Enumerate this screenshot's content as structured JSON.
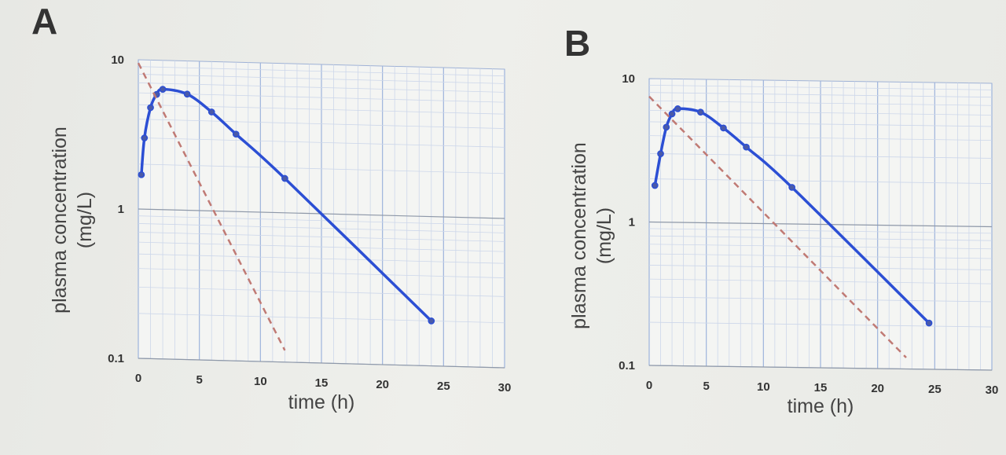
{
  "chart_data": [
    {
      "panel_label": "A",
      "type": "line",
      "xlabel": "time (h)",
      "ylabel_line1": "plasma concentration",
      "ylabel_line2": "(mg/L)",
      "xlim": [
        0,
        30
      ],
      "ylim": [
        0.1,
        10
      ],
      "yscale": "log",
      "xticks": [
        "0",
        "5",
        "10",
        "15",
        "20",
        "25",
        "30"
      ],
      "yticks": [
        "0.1",
        "1",
        "10"
      ],
      "grid": true,
      "series": [
        {
          "style": "solid-with-markers",
          "color": "#2c4fd4",
          "x": [
            0.25,
            0.5,
            1,
            1.5,
            2,
            4,
            6,
            8,
            12,
            24
          ],
          "y": [
            1.7,
            3.0,
            4.8,
            5.9,
            6.4,
            6.0,
            4.6,
            3.3,
            1.7,
            0.2
          ]
        },
        {
          "style": "dashed",
          "color": "#c07a74",
          "x": [
            0,
            12
          ],
          "y": [
            9.5,
            0.12
          ]
        }
      ]
    },
    {
      "panel_label": "B",
      "type": "line",
      "xlabel": "time (h)",
      "ylabel_line1": "plasma concentration",
      "ylabel_line2": "(mg/L)",
      "xlim": [
        0,
        30
      ],
      "ylim": [
        0.1,
        10
      ],
      "yscale": "log",
      "xticks": [
        "0",
        "5",
        "10",
        "15",
        "20",
        "25",
        "30"
      ],
      "yticks": [
        "0.1",
        "1",
        "10"
      ],
      "grid": true,
      "series": [
        {
          "style": "solid-with-markers",
          "color": "#2c4fd4",
          "x": [
            0.5,
            1,
            1.5,
            2,
            2.5,
            4.5,
            6.5,
            8.5,
            12.5,
            24.5
          ],
          "y": [
            1.8,
            3.0,
            4.6,
            5.7,
            6.2,
            5.9,
            4.6,
            3.4,
            1.8,
            0.21
          ]
        },
        {
          "style": "dashed",
          "color": "#c07a74",
          "x": [
            0,
            22.5
          ],
          "y": [
            7.5,
            0.12
          ]
        }
      ]
    }
  ]
}
